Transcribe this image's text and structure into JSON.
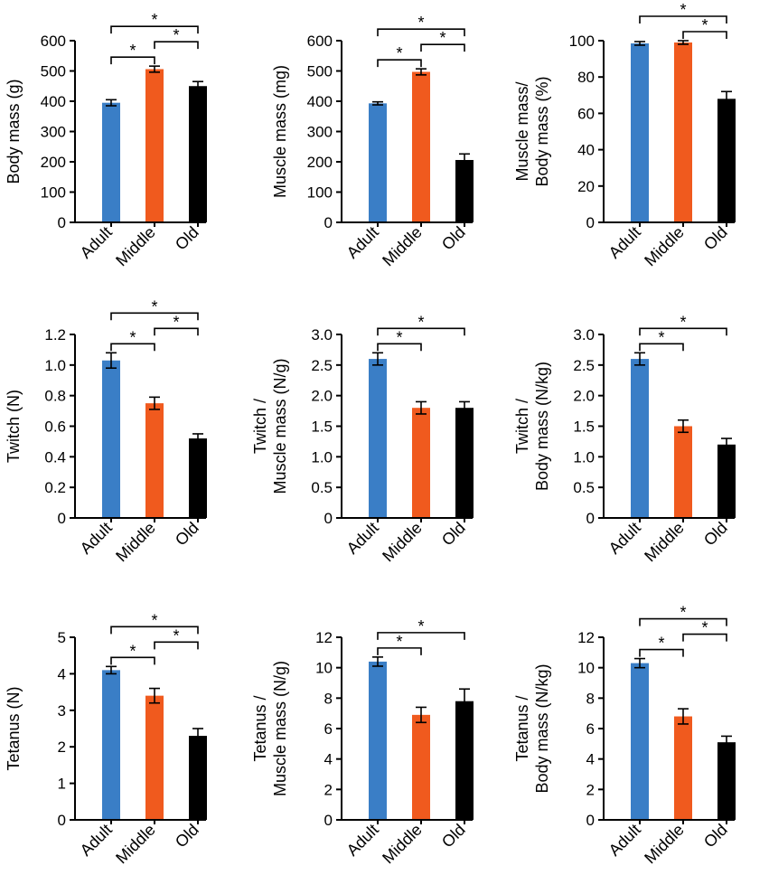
{
  "figure": {
    "colors": {
      "Adult": "#3a7ec6",
      "Middle": "#f05a1e",
      "Old": "#000000",
      "axis": "#000000"
    },
    "significance_marker": "*"
  },
  "chart_data": [
    {
      "type": "bar",
      "title": "",
      "xlabel": "",
      "ylabel": [
        "Body mass (g)"
      ],
      "categories": [
        "Adult",
        "Middle",
        "Old"
      ],
      "values": [
        395,
        506,
        450
      ],
      "errors": [
        10,
        10,
        15
      ],
      "ylim": [
        0,
        600
      ],
      "yticks": [
        "0",
        "100",
        "200",
        "300",
        "400",
        "500",
        "600"
      ],
      "significance": [
        {
          "from": 0,
          "to": 1,
          "label": "*"
        },
        {
          "from": 0,
          "to": 2,
          "label": "*"
        },
        {
          "from": 1,
          "to": 2,
          "label": "*"
        }
      ]
    },
    {
      "type": "bar",
      "title": "",
      "xlabel": "",
      "ylabel": [
        "Muscle mass (mg)"
      ],
      "categories": [
        "Adult",
        "Middle",
        "Old"
      ],
      "values": [
        393,
        497,
        206
      ],
      "errors": [
        5,
        10,
        20
      ],
      "ylim": [
        0,
        600
      ],
      "yticks": [
        "0",
        "100",
        "200",
        "300",
        "400",
        "500",
        "600"
      ],
      "significance": [
        {
          "from": 0,
          "to": 1,
          "label": "*"
        },
        {
          "from": 0,
          "to": 2,
          "label": "*"
        },
        {
          "from": 1,
          "to": 2,
          "label": "*"
        }
      ]
    },
    {
      "type": "bar",
      "title": "",
      "xlabel": "",
      "ylabel": [
        "Muscle mass/",
        "Body mass (%)"
      ],
      "categories": [
        "Adult",
        "Middle",
        "Old"
      ],
      "values": [
        98.5,
        99,
        68
      ],
      "errors": [
        1,
        1,
        4
      ],
      "ylim": [
        0,
        100
      ],
      "yticks": [
        "0",
        "20",
        "40",
        "60",
        "80",
        "100"
      ],
      "significance": [
        {
          "from": 0,
          "to": 2,
          "label": "*"
        },
        {
          "from": 1,
          "to": 2,
          "label": "*"
        }
      ]
    },
    {
      "type": "bar",
      "title": "",
      "xlabel": "",
      "ylabel": [
        "Twitch (N)"
      ],
      "categories": [
        "Adult",
        "Middle",
        "Old"
      ],
      "values": [
        1.03,
        0.75,
        0.52
      ],
      "errors": [
        0.05,
        0.04,
        0.03
      ],
      "ylim": [
        0,
        1.2
      ],
      "yticks": [
        "0",
        "0.2",
        "0.4",
        "0.6",
        "0.8",
        "1.0",
        "1.2"
      ],
      "significance": [
        {
          "from": 0,
          "to": 1,
          "label": "*"
        },
        {
          "from": 0,
          "to": 2,
          "label": "*"
        },
        {
          "from": 1,
          "to": 2,
          "label": "*"
        }
      ]
    },
    {
      "type": "bar",
      "title": "",
      "xlabel": "",
      "ylabel": [
        "Twitch /",
        "Muscle mass (N/g)"
      ],
      "categories": [
        "Adult",
        "Middle",
        "Old"
      ],
      "values": [
        2.6,
        1.8,
        1.8
      ],
      "errors": [
        0.1,
        0.1,
        0.1
      ],
      "ylim": [
        0,
        3.0
      ],
      "yticks": [
        "0",
        "0.5",
        "1.0",
        "1.5",
        "2.0",
        "2.5",
        "3.0"
      ],
      "significance": [
        {
          "from": 0,
          "to": 1,
          "label": "*"
        },
        {
          "from": 0,
          "to": 2,
          "label": "*"
        }
      ]
    },
    {
      "type": "bar",
      "title": "",
      "xlabel": "",
      "ylabel": [
        "Twitch /",
        "Body mass (N/kg)"
      ],
      "categories": [
        "Adult",
        "Middle",
        "Old"
      ],
      "values": [
        2.6,
        1.5,
        1.2
      ],
      "errors": [
        0.1,
        0.1,
        0.1
      ],
      "ylim": [
        0,
        3.0
      ],
      "yticks": [
        "0",
        "0.5",
        "1.0",
        "1.5",
        "2.0",
        "2.5",
        "3.0"
      ],
      "significance": [
        {
          "from": 0,
          "to": 1,
          "label": "*"
        },
        {
          "from": 0,
          "to": 2,
          "label": "*"
        }
      ]
    },
    {
      "type": "bar",
      "title": "",
      "xlabel": "",
      "ylabel": [
        "Tetanus (N)"
      ],
      "categories": [
        "Adult",
        "Middle",
        "Old"
      ],
      "values": [
        4.1,
        3.4,
        2.3
      ],
      "errors": [
        0.1,
        0.2,
        0.2
      ],
      "ylim": [
        0,
        5
      ],
      "yticks": [
        "0",
        "1",
        "2",
        "3",
        "4",
        "5"
      ],
      "significance": [
        {
          "from": 0,
          "to": 1,
          "label": "*"
        },
        {
          "from": 0,
          "to": 2,
          "label": "*"
        },
        {
          "from": 1,
          "to": 2,
          "label": "*"
        }
      ]
    },
    {
      "type": "bar",
      "title": "",
      "xlabel": "",
      "ylabel": [
        "Tetanus /",
        "Muscle mass (N/g)"
      ],
      "categories": [
        "Adult",
        "Middle",
        "Old"
      ],
      "values": [
        10.4,
        6.9,
        7.8
      ],
      "errors": [
        0.3,
        0.5,
        0.8
      ],
      "ylim": [
        0,
        12
      ],
      "yticks": [
        "0",
        "2",
        "4",
        "6",
        "8",
        "10",
        "12"
      ],
      "significance": [
        {
          "from": 0,
          "to": 1,
          "label": "*"
        },
        {
          "from": 0,
          "to": 2,
          "label": "*"
        }
      ]
    },
    {
      "type": "bar",
      "title": "",
      "xlabel": "",
      "ylabel": [
        "Tetanus /",
        "Body mass (N/kg)"
      ],
      "categories": [
        "Adult",
        "Middle",
        "Old"
      ],
      "values": [
        10.3,
        6.8,
        5.1
      ],
      "errors": [
        0.3,
        0.5,
        0.4
      ],
      "ylim": [
        0,
        12
      ],
      "yticks": [
        "0",
        "2",
        "4",
        "6",
        "8",
        "10",
        "12"
      ],
      "significance": [
        {
          "from": 0,
          "to": 1,
          "label": "*"
        },
        {
          "from": 0,
          "to": 2,
          "label": "*"
        },
        {
          "from": 1,
          "to": 2,
          "label": "*"
        }
      ]
    }
  ]
}
